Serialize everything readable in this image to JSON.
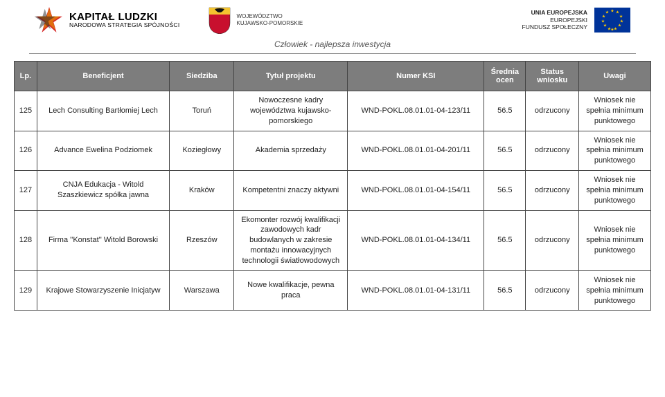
{
  "header": {
    "kapital_title": "KAPITAŁ LUDZKI",
    "kapital_sub": "NARODOWA STRATEGIA SPÓJNOŚCI",
    "region_line1": "WOJEWÓDZTWO",
    "region_line2": "KUJAWSKO-POMORSKIE",
    "eu_line1": "UNIA EUROPEJSKA",
    "eu_line2": "EUROPEJSKI",
    "eu_line3": "FUNDUSZ SPOŁECZNY",
    "tagline": "Człowiek - najlepsza inwestycja"
  },
  "table": {
    "headers": {
      "lp": "Lp.",
      "beneficjent": "Beneficjent",
      "siedziba": "Siedziba",
      "tytul": "Tytuł projektu",
      "ksi": "Numer KSI",
      "ocen": "Średnia ocen",
      "status": "Status wniosku",
      "uwagi": "Uwagi"
    },
    "rows": [
      {
        "lp": "125",
        "beneficjent": "Lech Consulting Bartłomiej Lech",
        "siedziba": "Toruń",
        "tytul": "Nowoczesne kadry województwa kujawsko-pomorskiego",
        "ksi": "WND-POKL.08.01.01-04-123/11",
        "ocen": "56.5",
        "status": "odrzucony",
        "uwagi": "Wniosek nie spełnia minimum punktowego"
      },
      {
        "lp": "126",
        "beneficjent": "Advance Ewelina Podziomek",
        "siedziba": "Koziegłowy",
        "tytul": "Akademia sprzedaży",
        "ksi": "WND-POKL.08.01.01-04-201/11",
        "ocen": "56.5",
        "status": "odrzucony",
        "uwagi": "Wniosek nie spełnia minimum punktowego"
      },
      {
        "lp": "127",
        "beneficjent": "CNJA Edukacja - Witold Szaszkiewicz spółka jawna",
        "siedziba": "Kraków",
        "tytul": "Kompetentni znaczy aktywni",
        "ksi": "WND-POKL.08.01.01-04-154/11",
        "ocen": "56.5",
        "status": "odrzucony",
        "uwagi": "Wniosek nie spełnia minimum punktowego"
      },
      {
        "lp": "128",
        "beneficjent": "Firma ''Konstat'' Witold Borowski",
        "siedziba": "Rzeszów",
        "tytul": "Ekomonter rozwój kwalifikacji zawodowych kadr budowlanych w zakresie montażu innowacyjnych technologii światłowodowych",
        "ksi": "WND-POKL.08.01.01-04-134/11",
        "ocen": "56.5",
        "status": "odrzucony",
        "uwagi": "Wniosek nie spełnia minimum punktowego"
      },
      {
        "lp": "129",
        "beneficjent": "Krajowe Stowarzyszenie Inicjatyw",
        "siedziba": "Warszawa",
        "tytul": "Nowe kwalifikacje, pewna praca",
        "ksi": "WND-POKL.08.01.01-04-131/11",
        "ocen": "56.5",
        "status": "odrzucony",
        "uwagi": "Wniosek nie spełnia minimum punktowego"
      }
    ]
  },
  "colors": {
    "header_bg": "#7d7d7d",
    "header_fg": "#ffffff",
    "border": "#444444",
    "tagline": "#555555",
    "eu_flag_bg": "#003399",
    "eu_star": "#ffcc00"
  }
}
